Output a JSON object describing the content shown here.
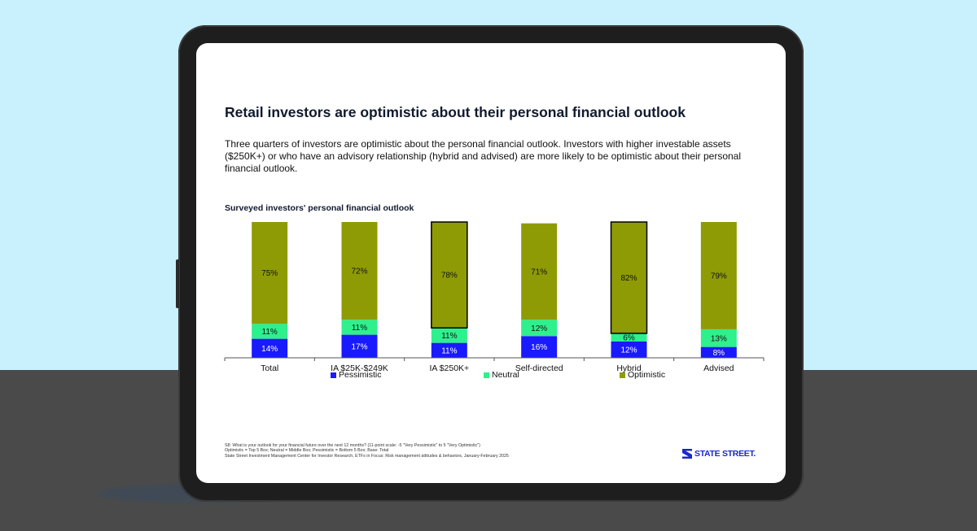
{
  "slide": {
    "title": "Retail investors are optimistic about their personal financial outlook",
    "description": "Three quarters of investors are optimistic about the personal financial outlook. Investors with higher investable assets ($250K+) or who have an advisory relationship (hybrid and advised) are more likely to be optimistic about their personal financial outlook.",
    "chart_title": "Surveyed investors' personal financial outlook",
    "footnotes": [
      "S8: What is your outlook for your financial future over the next 12 months? (11-point scale: -5 \"Very Pessimistic\" to 5 \"Very Optimistic\")",
      "Optimistic = Top 5 Box; Neutral = Middle Box; Pessimistic = Bottom 5 Box; Base: Total",
      "State Street Investment Management Center for Investor Research, ETFs in Focus: Risk management attitudes & behaviors, January-February 2025"
    ],
    "logo_text": "STATE STREET."
  },
  "chart_data": {
    "type": "bar",
    "stacked": true,
    "title": "Surveyed investors' personal financial outlook",
    "categories": [
      "Total",
      "IA $25K-$249K",
      "IA $250K+",
      "Self-directed",
      "Hybrid",
      "Advised"
    ],
    "series": [
      {
        "name": "Pessimistic",
        "values": [
          14,
          17,
          11,
          16,
          12,
          8
        ],
        "labels": [
          "14%",
          "17%",
          "11%",
          "16%",
          "12%",
          "8%"
        ],
        "color": "#1a1aff"
      },
      {
        "name": "Neutral",
        "values": [
          11,
          11,
          11,
          12,
          6,
          13
        ],
        "labels": [
          "11%",
          "11%",
          "11%",
          "12%",
          "6%",
          "13%"
        ],
        "color": "#2ef08c"
      },
      {
        "name": "Optimistic",
        "values": [
          75,
          72,
          78,
          71,
          82,
          79
        ],
        "labels": [
          "75%",
          "72%",
          "78%",
          "71%",
          "82%",
          "79%"
        ],
        "color": "#8e9b05"
      }
    ],
    "highlighted_categories": [
      "IA $250K+",
      "Hybrid"
    ],
    "legend_position": "bottom",
    "ylim": [
      0,
      100
    ],
    "grid": false
  }
}
